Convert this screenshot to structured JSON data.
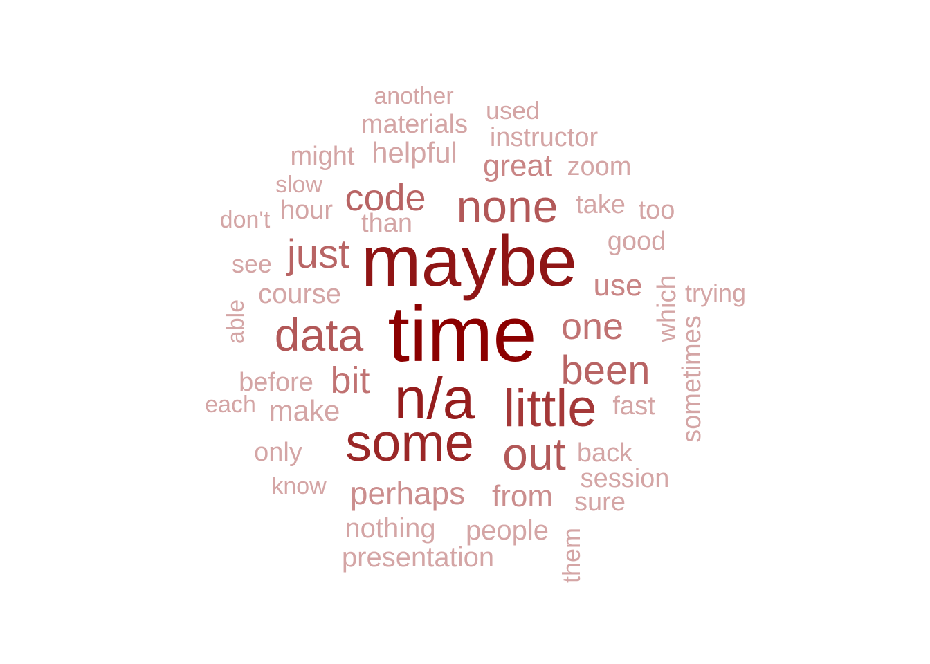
{
  "word_cloud": {
    "words": [
      {
        "text": "time",
        "color": "#8b0000"
      },
      {
        "text": "maybe",
        "color": "#8f1515"
      },
      {
        "text": "n/a",
        "color": "#951d1d"
      },
      {
        "text": "some",
        "color": "#9a2727"
      },
      {
        "text": "little",
        "color": "#a43838"
      },
      {
        "text": "none",
        "color": "#b25858"
      },
      {
        "text": "out",
        "color": "#b25858"
      },
      {
        "text": "data",
        "color": "#b25858"
      },
      {
        "text": "just",
        "color": "#b86464"
      },
      {
        "text": "code",
        "color": "#b86464"
      },
      {
        "text": "been",
        "color": "#b86464"
      },
      {
        "text": "one",
        "color": "#c07272"
      },
      {
        "text": "bit",
        "color": "#c07272"
      },
      {
        "text": "perhaps",
        "color": "#cb8e8e"
      },
      {
        "text": "from",
        "color": "#cb8e8e"
      },
      {
        "text": "great",
        "color": "#c98585"
      },
      {
        "text": "use",
        "color": "#c98585"
      },
      {
        "text": "helpful",
        "color": "#d4a5a5"
      },
      {
        "text": "materials",
        "color": "#d4a5a5"
      },
      {
        "text": "another",
        "color": "#d4a5a5"
      },
      {
        "text": "used",
        "color": "#d4a5a5"
      },
      {
        "text": "instructor",
        "color": "#d4a5a5"
      },
      {
        "text": "zoom",
        "color": "#d4a5a5"
      },
      {
        "text": "might",
        "color": "#d4a5a5"
      },
      {
        "text": "slow",
        "color": "#d4a5a5"
      },
      {
        "text": "hour",
        "color": "#d4a5a5"
      },
      {
        "text": "than",
        "color": "#d4a5a5"
      },
      {
        "text": "take",
        "color": "#d4a5a5"
      },
      {
        "text": "too",
        "color": "#d4a5a5"
      },
      {
        "text": "don't",
        "color": "#d4a5a5"
      },
      {
        "text": "good",
        "color": "#d4a5a5"
      },
      {
        "text": "see",
        "color": "#d4a5a5"
      },
      {
        "text": "course",
        "color": "#d4a5a5"
      },
      {
        "text": "which",
        "color": "#d4a5a5"
      },
      {
        "text": "trying",
        "color": "#d4a5a5"
      },
      {
        "text": "able",
        "color": "#d4a5a5"
      },
      {
        "text": "sometimes",
        "color": "#d4a5a5"
      },
      {
        "text": "before",
        "color": "#d4a5a5"
      },
      {
        "text": "each",
        "color": "#d4a5a5"
      },
      {
        "text": "make",
        "color": "#d4a5a5"
      },
      {
        "text": "fast",
        "color": "#d4a5a5"
      },
      {
        "text": "only",
        "color": "#d4a5a5"
      },
      {
        "text": "back",
        "color": "#d4a5a5"
      },
      {
        "text": "session",
        "color": "#d4a5a5"
      },
      {
        "text": "know",
        "color": "#d4a5a5"
      },
      {
        "text": "sure",
        "color": "#d4a5a5"
      },
      {
        "text": "nothing",
        "color": "#d4a5a5"
      },
      {
        "text": "people",
        "color": "#d4a5a5"
      },
      {
        "text": "presentation",
        "color": "#d4a5a5"
      },
      {
        "text": "them",
        "color": "#d4a5a5"
      }
    ]
  }
}
